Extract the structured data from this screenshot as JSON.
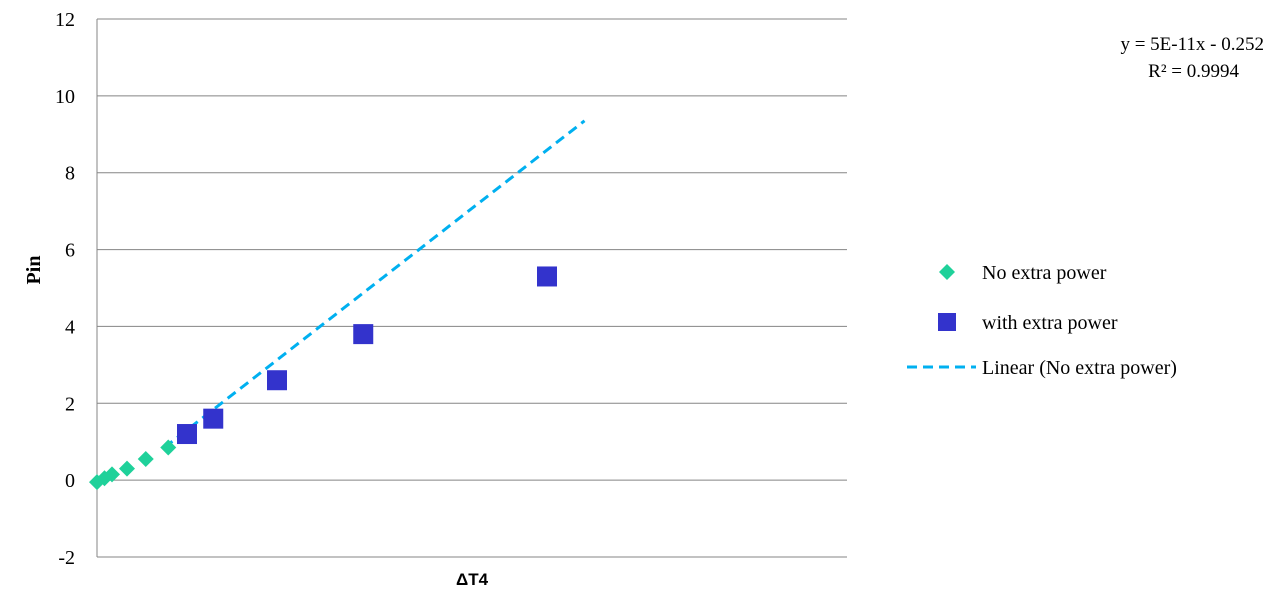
{
  "chart_data": {
    "type": "scatter",
    "title": "",
    "xlabel": "ΔT4",
    "ylabel": "Pin",
    "ylim": [
      -2,
      12
    ],
    "yticks": [
      "12",
      "10",
      "8",
      "6",
      "4",
      "2",
      "0",
      "-2"
    ],
    "grid": true,
    "legend_position": "right",
    "series": [
      {
        "name": "No extra power",
        "marker": "diamond",
        "color": "#1fd19a",
        "x": [
          0.0,
          0.01,
          0.02,
          0.04,
          0.065,
          0.095
        ],
        "y": [
          -0.05,
          0.05,
          0.15,
          0.3,
          0.55,
          0.85
        ]
      },
      {
        "name": "with extra power",
        "marker": "square",
        "color": "#3333cc",
        "x": [
          0.12,
          0.155,
          0.24,
          0.355,
          0.6
        ],
        "y": [
          1.2,
          1.6,
          2.6,
          3.8,
          5.3
        ]
      }
    ],
    "trendline": {
      "name": "Linear (No extra power)",
      "style": "dashed",
      "color": "#00b0f0",
      "x": [
        0.09,
        0.65
      ],
      "y": [
        0.85,
        9.35
      ]
    },
    "annotation": {
      "equation": "y = 5E-11x - 0.252",
      "r_squared": "R² = 0.9994"
    }
  }
}
